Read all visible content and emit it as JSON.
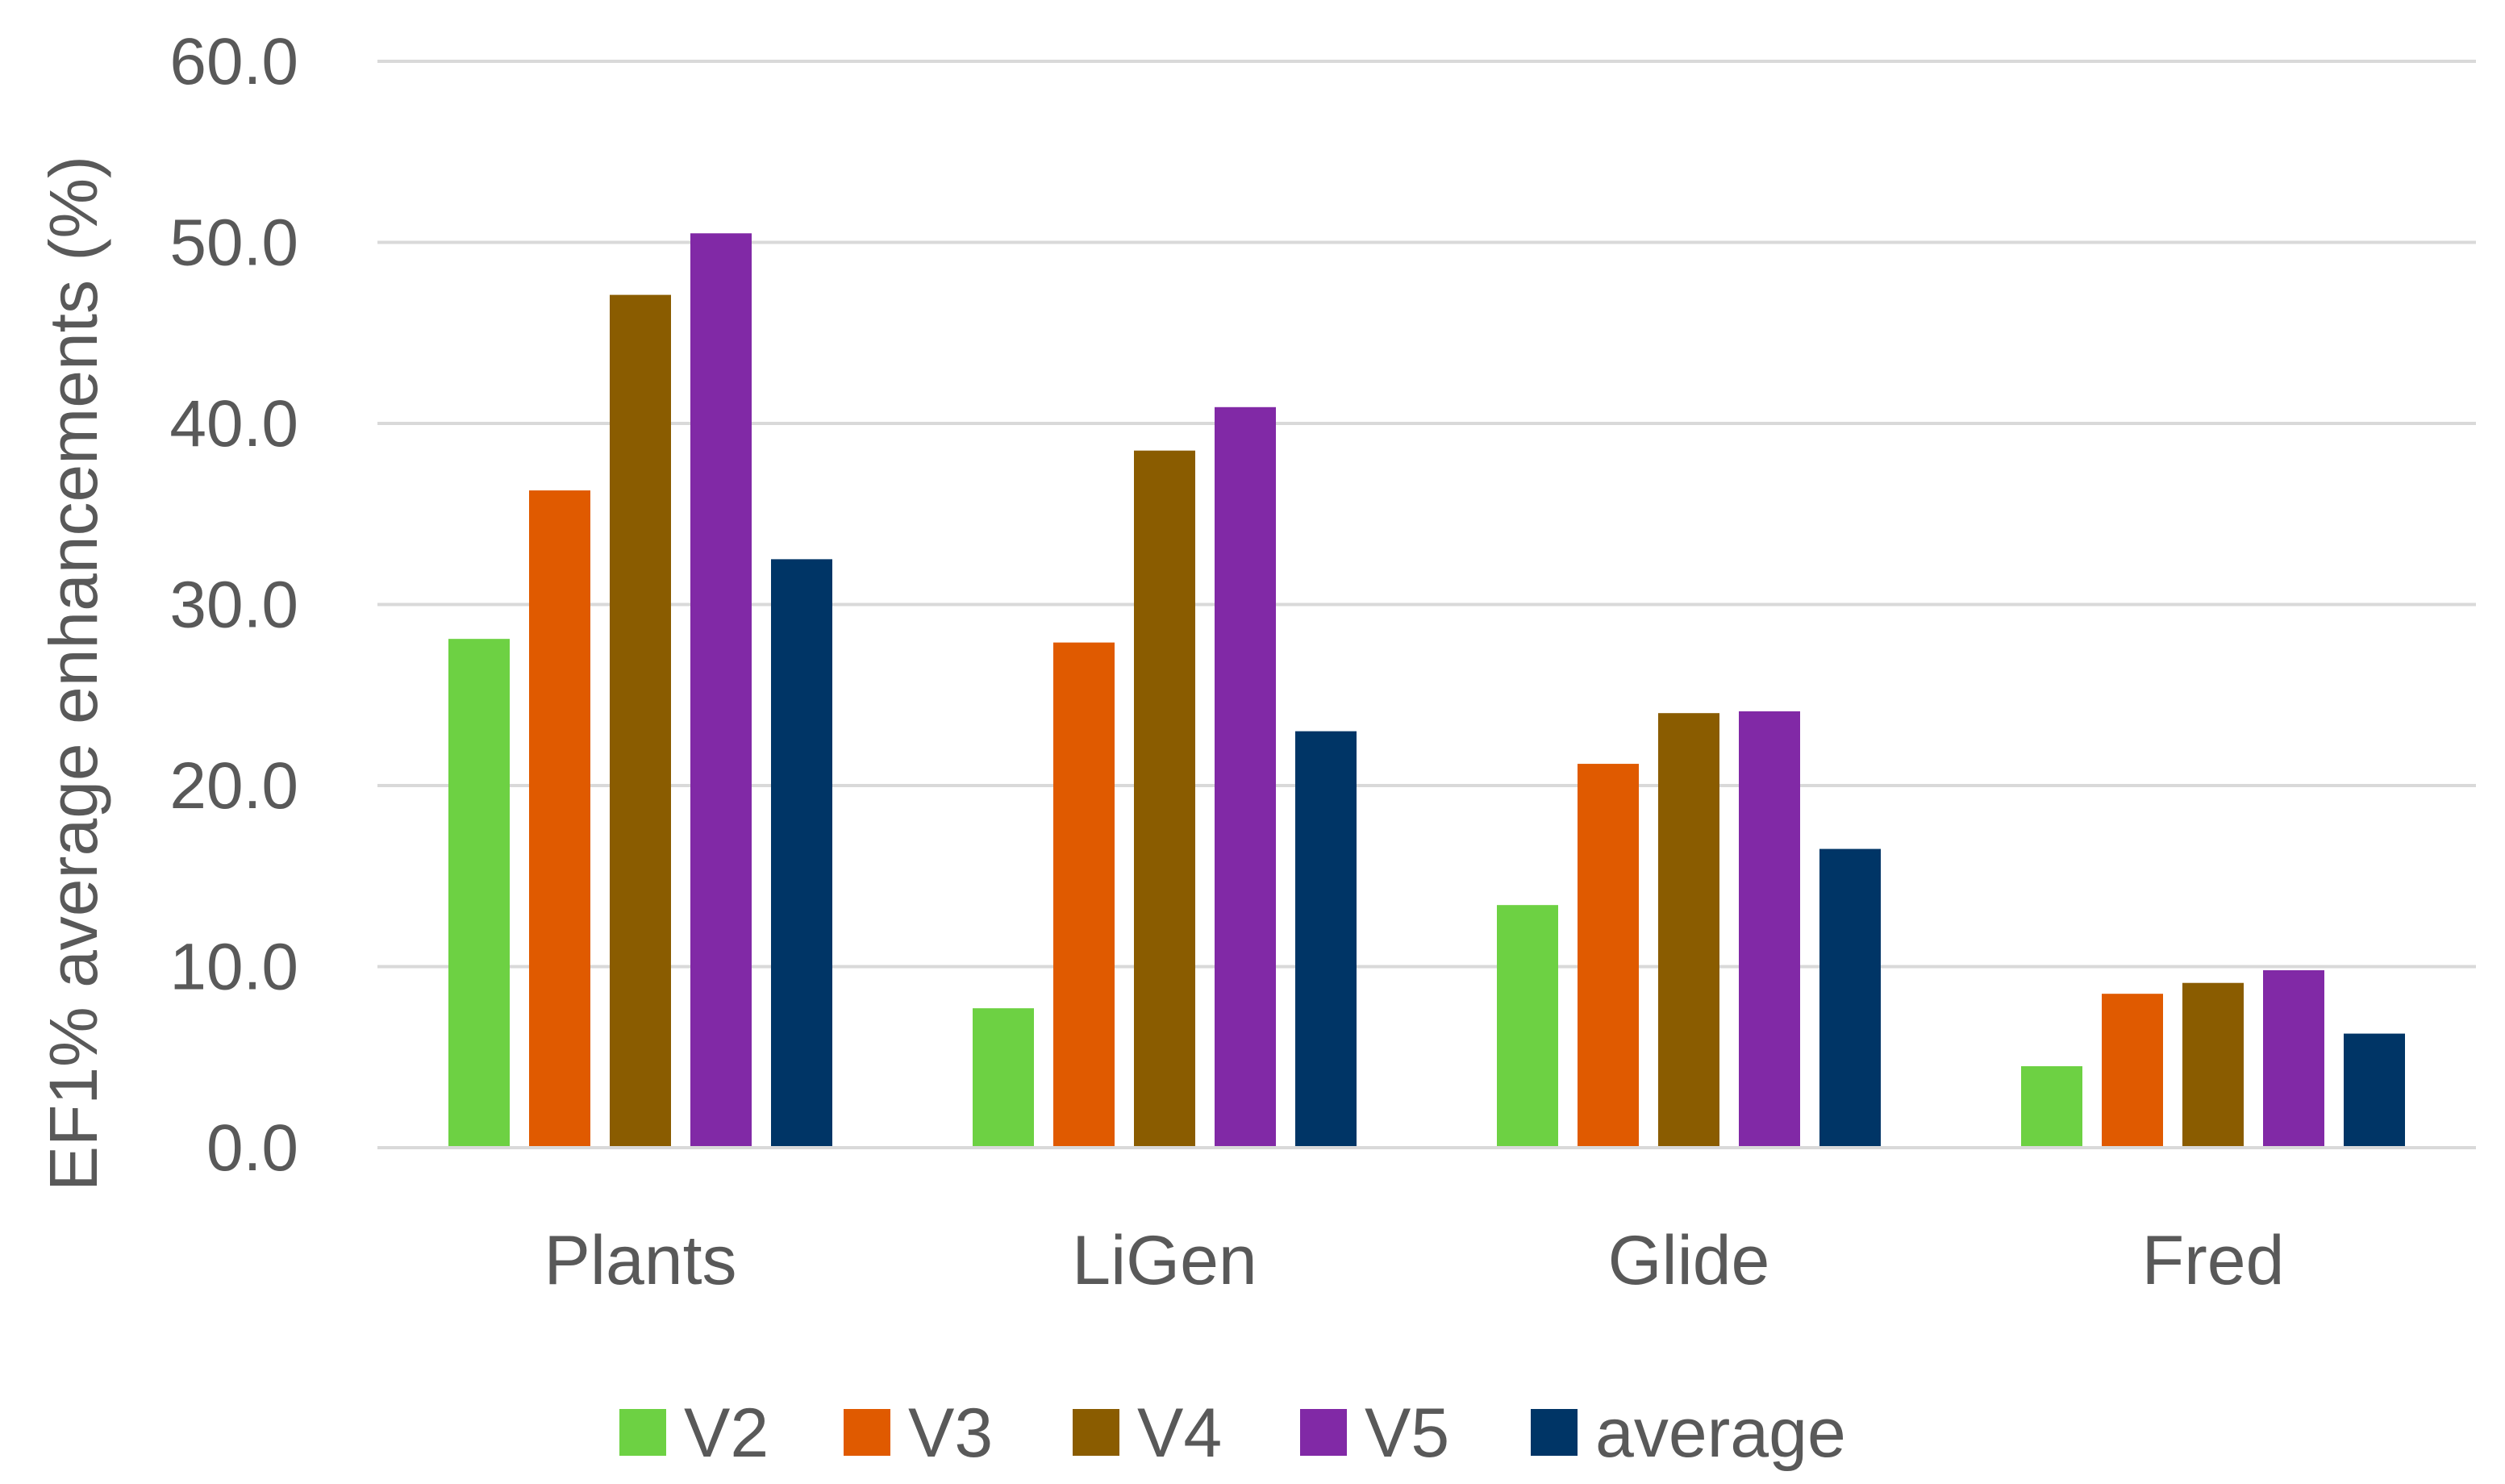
{
  "chart_data": {
    "type": "bar",
    "title": "",
    "xlabel": "",
    "ylabel": "EF1% average enhancements (%)",
    "ylim": [
      0,
      60
    ],
    "ytick_step": 10,
    "ytick_labels": [
      "0.0",
      "10.0",
      "20.0",
      "30.0",
      "40.0",
      "50.0",
      "60.0"
    ],
    "grid": true,
    "legend_position": "bottom",
    "categories": [
      "Plants",
      "LiGen",
      "Glide",
      "Fred"
    ],
    "series": [
      {
        "name": "V2",
        "color": "#6dd143",
        "values": [
          28.1,
          7.7,
          13.4,
          4.5
        ]
      },
      {
        "name": "V3",
        "color": "#e05a00",
        "values": [
          36.3,
          27.9,
          21.2,
          8.5
        ]
      },
      {
        "name": "V4",
        "color": "#8a5c00",
        "values": [
          47.1,
          38.5,
          24.0,
          9.1
        ]
      },
      {
        "name": "V5",
        "color": "#8129a6",
        "values": [
          50.5,
          40.9,
          24.1,
          9.8
        ]
      },
      {
        "name": "average",
        "color": "#003566",
        "values": [
          32.5,
          23.0,
          16.5,
          6.3
        ]
      }
    ]
  }
}
